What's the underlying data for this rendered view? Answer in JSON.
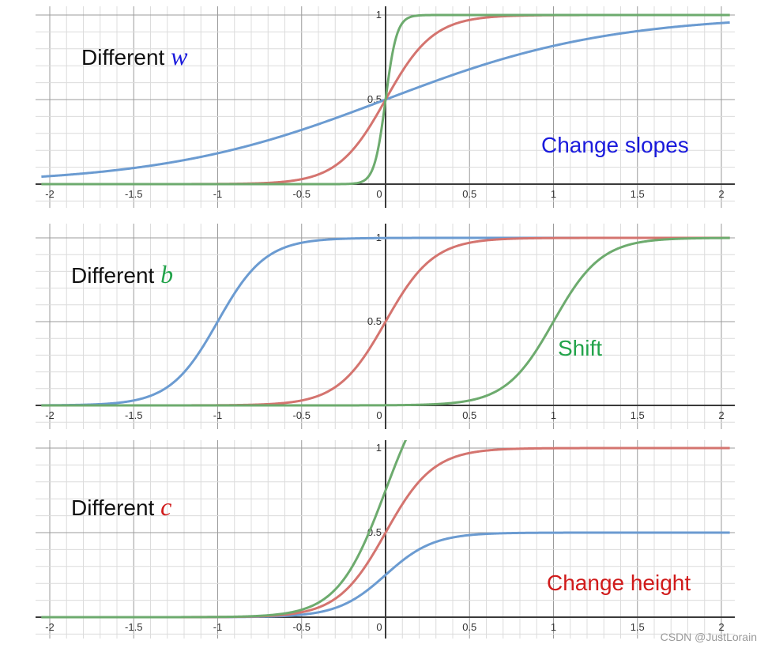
{
  "watermark": "CSDN @JustLorain",
  "colors": {
    "blue": "#6b9bd1",
    "red": "#d4746f",
    "green": "#6dab6e",
    "grid_minor": "#dcdcdc",
    "grid_major": "#9b9b9b",
    "axis": "#3a3a3a",
    "text": "#111111"
  },
  "chart_data": [
    {
      "type": "line",
      "label_prefix": "Different",
      "label_var": "w",
      "label_var_color": "#1a1adc",
      "annotation": "Change slopes",
      "annotation_color": "#1a1adc",
      "xlim": [
        -2.05,
        2.05
      ],
      "ylim": [
        -0.01,
        1.0
      ],
      "x_ticks": [
        "-2",
        "-1.5",
        "-1",
        "-0.5",
        "0",
        "0.5",
        "1",
        "1.5",
        "2"
      ],
      "y_ticks": [
        "0.5",
        "1"
      ],
      "grid": true,
      "series": [
        {
          "color": "blue",
          "formula": "sigmoid(w*x)",
          "w": 1.5
        },
        {
          "color": "red",
          "formula": "sigmoid(w*x)",
          "w": 7
        },
        {
          "color": "green",
          "formula": "sigmoid(w*x)",
          "w": 30
        }
      ]
    },
    {
      "type": "line",
      "label_prefix": "Different",
      "label_var": "b",
      "label_var_color": "#22a34a",
      "annotation": "Shift",
      "annotation_color": "#22a34a",
      "xlim": [
        -2.05,
        2.05
      ],
      "ylim": [
        -0.01,
        1.0
      ],
      "x_ticks": [
        "-2",
        "-1.5",
        "-1",
        "-0.5",
        "0",
        "0.5",
        "1",
        "1.5",
        "2"
      ],
      "y_ticks": [
        "0.5",
        "1"
      ],
      "grid": true,
      "series": [
        {
          "color": "blue",
          "formula": "sigmoid(w*x+b)",
          "w": 7,
          "b": 7
        },
        {
          "color": "red",
          "formula": "sigmoid(w*x+b)",
          "w": 7,
          "b": 0
        },
        {
          "color": "green",
          "formula": "sigmoid(w*x+b)",
          "w": 7,
          "b": -7
        }
      ]
    },
    {
      "type": "line",
      "label_prefix": "Different",
      "label_var": "c",
      "label_var_color": "#d01a1a",
      "annotation": "Change height",
      "annotation_color": "#d01a1a",
      "xlim": [
        -2.05,
        2.05
      ],
      "ylim": [
        -0.01,
        1.0
      ],
      "x_ticks": [
        "-2",
        "-1.5",
        "-1",
        "-0.5",
        "0",
        "0.5",
        "1",
        "1.5",
        "2"
      ],
      "y_ticks": [
        "0.5",
        "1"
      ],
      "grid": true,
      "series": [
        {
          "color": "blue",
          "formula": "c*sigmoid(w*x)",
          "w": 7,
          "c": 0.5
        },
        {
          "color": "red",
          "formula": "c*sigmoid(w*x)",
          "w": 7,
          "c": 1
        },
        {
          "color": "green",
          "formula": "c*sigmoid(w*x)",
          "w": 7,
          "c": 1.5
        }
      ]
    }
  ]
}
